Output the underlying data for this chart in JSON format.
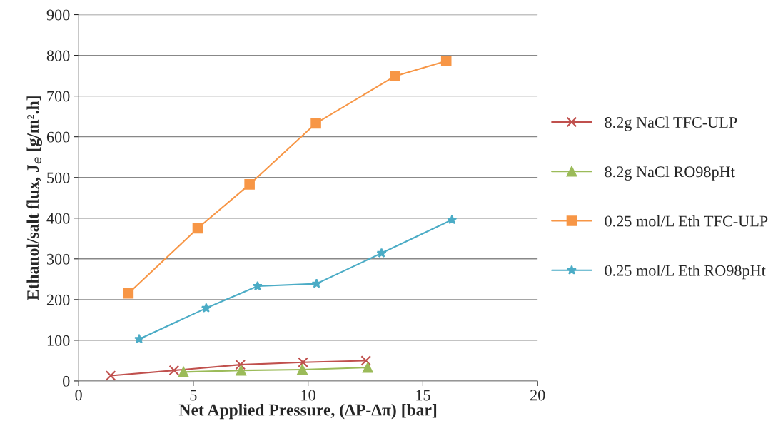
{
  "chart_data": {
    "type": "line",
    "xlabel": "Net Applied Pressure, (ΔP-Δπ) [bar]",
    "ylabel": "Ethanol/salt flux, J$_{e}$ [g/m².h]",
    "xlim": [
      0,
      20
    ],
    "xticks": [
      0,
      5,
      10,
      15,
      20
    ],
    "ylim": [
      0,
      900
    ],
    "yticks": [
      0,
      100,
      200,
      300,
      400,
      500,
      600,
      700,
      800,
      900
    ],
    "grid": "y",
    "legend": "right",
    "series": [
      {
        "name": "8.2g NaCl TFC-ULP",
        "color": "#c0504d",
        "marker": "cross",
        "x": [
          1.4,
          4.16,
          7.05,
          9.78,
          12.52
        ],
        "values": [
          13,
          26,
          40,
          46,
          50
        ]
      },
      {
        "name": "8.2g NaCl RO98pHt",
        "color": "#9bbb59",
        "marker": "triangle",
        "x": [
          4.57,
          7.08,
          9.75,
          12.6
        ],
        "values": [
          22,
          26,
          28,
          33
        ]
      },
      {
        "name": "0.25 mol/L Eth TFC-ULP",
        "color": "#f79646",
        "marker": "square",
        "x": [
          2.17,
          5.19,
          7.45,
          10.34,
          13.79,
          16.02
        ],
        "values": [
          215,
          375,
          483,
          633,
          749,
          786
        ]
      },
      {
        "name": "0.25 mol/L Eth RO98pHt",
        "color": "#4bacc6",
        "marker": "star",
        "x": [
          2.64,
          5.56,
          7.8,
          10.37,
          13.2,
          16.27
        ],
        "values": [
          103,
          179,
          233,
          239,
          314,
          396
        ]
      }
    ]
  }
}
